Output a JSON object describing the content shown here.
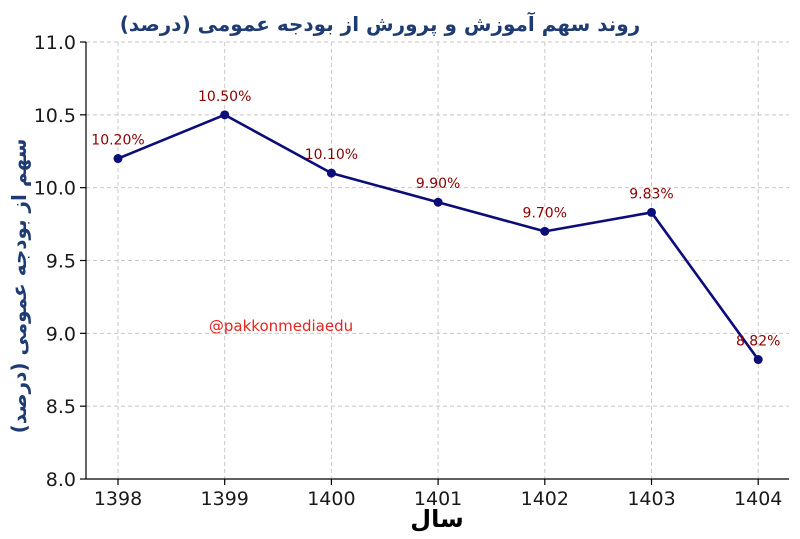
{
  "chart_data": {
    "type": "line",
    "title": "روند سهم آموزش و پرورش از بودجه عمومی (درصد)",
    "xlabel": "سال",
    "ylabel": "سهم از بودجه عمومی (درصد)",
    "categories": [
      "1398",
      "1399",
      "1400",
      "1401",
      "1402",
      "1403",
      "1404"
    ],
    "values": [
      10.2,
      10.5,
      10.1,
      9.9,
      9.7,
      9.83,
      8.82
    ],
    "data_labels": [
      "10.20%",
      "10.50%",
      "10.10%",
      "9.90%",
      "9.70%",
      "9.83%",
      "8.82%"
    ],
    "ylim": [
      8.0,
      11.0
    ],
    "yticks": [
      "8.0",
      "8.5",
      "9.0",
      "9.5",
      "10.0",
      "10.5",
      "11.0"
    ],
    "grid": true,
    "line_color": "#0d0d7a",
    "label_color": "#8b0000",
    "watermark": "@pakkonmediaedu"
  }
}
